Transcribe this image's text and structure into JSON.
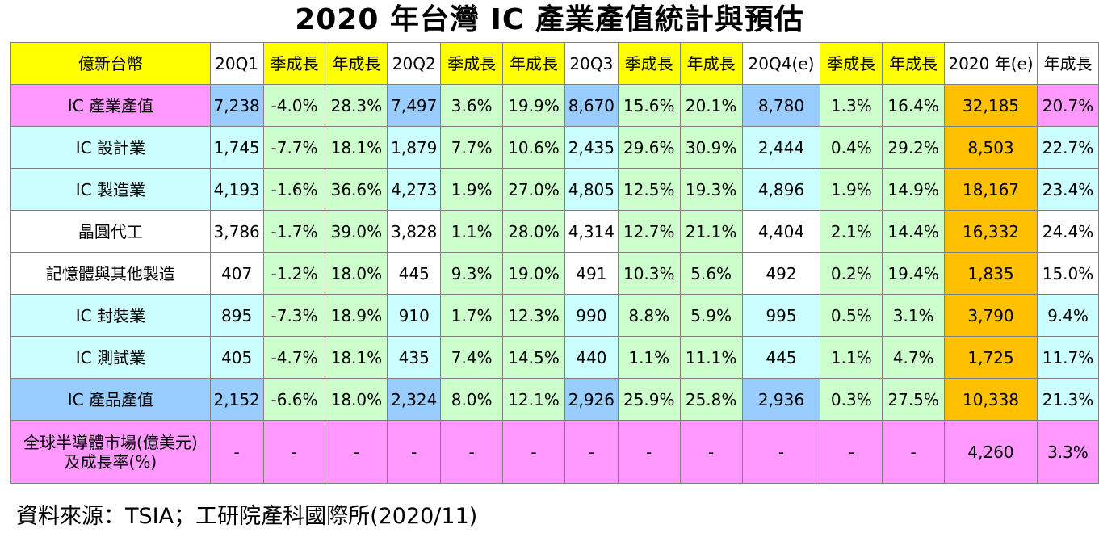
{
  "title": "2020 年台灣 IC 產業產值統計與預估",
  "table": {
    "headers": [
      "億新台幣",
      "20Q1",
      "季成長",
      "年成長",
      "20Q2",
      "季成長",
      "年成長",
      "20Q3",
      "季成長",
      "年成長",
      "20Q4(e)",
      "季成長",
      "年成長",
      "2020 年(e)",
      "年成長"
    ],
    "rows": [
      {
        "label": "IC 產業產值",
        "cells": [
          "7,238",
          "-4.0%",
          "28.3%",
          "7,497",
          "3.6%",
          "19.9%",
          "8,670",
          "15.6%",
          "20.1%",
          "8,780",
          "1.3%",
          "16.4%",
          "32,185",
          "20.7%"
        ]
      },
      {
        "label": "IC 設計業",
        "cells": [
          "1,745",
          "-7.7%",
          "18.1%",
          "1,879",
          "7.7%",
          "10.6%",
          "2,435",
          "29.6%",
          "30.9%",
          "2,444",
          "0.4%",
          "29.2%",
          "8,503",
          "22.7%"
        ]
      },
      {
        "label": "IC 製造業",
        "cells": [
          "4,193",
          "-1.6%",
          "36.6%",
          "4,273",
          "1.9%",
          "27.0%",
          "4,805",
          "12.5%",
          "19.3%",
          "4,896",
          "1.9%",
          "14.9%",
          "18,167",
          "23.4%"
        ]
      },
      {
        "label": "晶圓代工",
        "cells": [
          "3,786",
          "-1.7%",
          "39.0%",
          "3,828",
          "1.1%",
          "28.0%",
          "4,314",
          "12.7%",
          "21.1%",
          "4,404",
          "2.1%",
          "14.4%",
          "16,332",
          "24.4%"
        ]
      },
      {
        "label": "記憶體與其他製造",
        "cells": [
          "407",
          "-1.2%",
          "18.0%",
          "445",
          "9.3%",
          "19.0%",
          "491",
          "10.3%",
          "5.6%",
          "492",
          "0.2%",
          "19.4%",
          "1,835",
          "15.0%"
        ]
      },
      {
        "label": "IC 封裝業",
        "cells": [
          "895",
          "-7.3%",
          "18.9%",
          "910",
          "1.7%",
          "12.3%",
          "990",
          "8.8%",
          "5.9%",
          "995",
          "0.5%",
          "3.1%",
          "3,790",
          "9.4%"
        ]
      },
      {
        "label": "IC 測試業",
        "cells": [
          "405",
          "-4.7%",
          "18.1%",
          "435",
          "7.4%",
          "14.5%",
          "440",
          "1.1%",
          "11.1%",
          "445",
          "1.1%",
          "4.7%",
          "1,725",
          "11.7%"
        ]
      },
      {
        "label": "IC 產品產值",
        "cells": [
          "2,152",
          "-6.6%",
          "18.0%",
          "2,324",
          "8.0%",
          "12.1%",
          "2,926",
          "25.9%",
          "25.8%",
          "2,936",
          "0.3%",
          "27.5%",
          "10,338",
          "21.3%"
        ]
      },
      {
        "label_line1": "全球半導體市場(億美元)",
        "label_line2": "及成長率(%)",
        "cells": [
          "-",
          "-",
          "-",
          "-",
          "-",
          "-",
          "-",
          "-",
          "-",
          "-",
          "-",
          "-",
          "4,260",
          "3.3%"
        ]
      }
    ]
  },
  "footer": "資料來源：TSIA；工研院產科國際所(2020/11)",
  "colors": {
    "header_bg": "#ffff00",
    "pink": "#ff99ff",
    "cyan": "#ccffff",
    "blue": "#99ccff",
    "green": "#ccffcc",
    "orange": "#ffc000",
    "border": "#7f7f7f"
  }
}
